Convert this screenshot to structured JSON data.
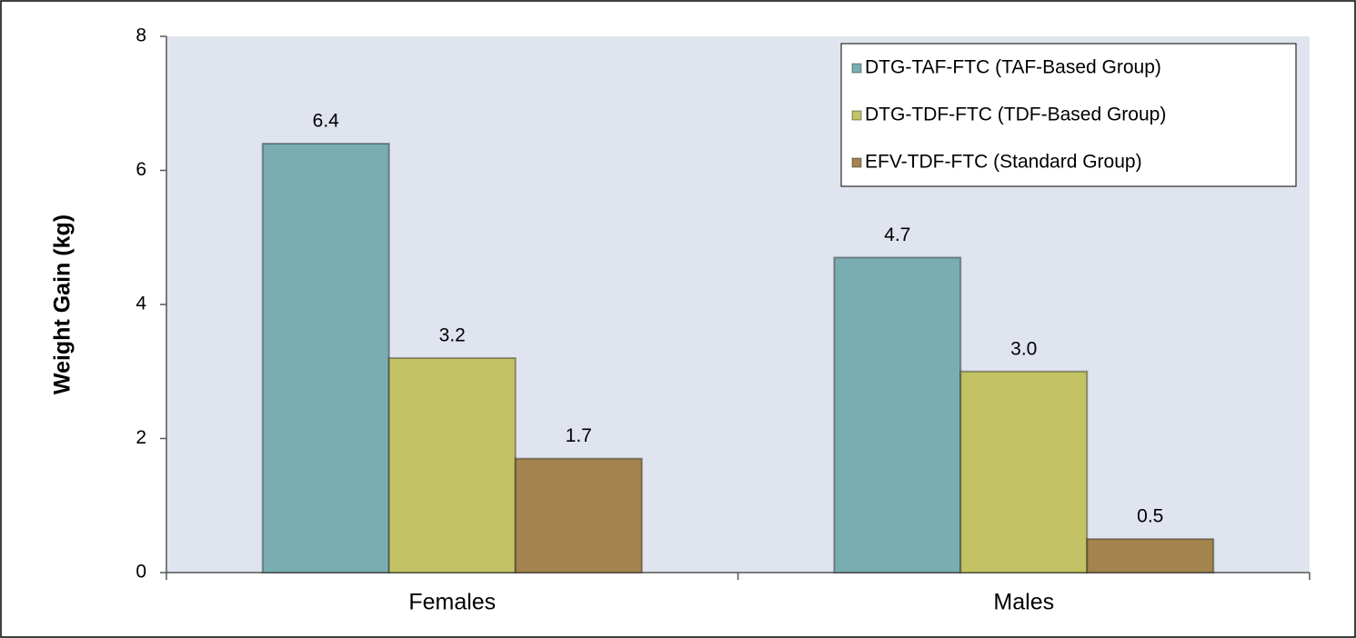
{
  "chart_data": {
    "type": "bar",
    "y_label": "Weight Gain (kg)",
    "categories": [
      "Females",
      "Males"
    ],
    "series": [
      {
        "name": "DTG-TAF-FTC (TAF-Based Group)",
        "color": "#7aadb1",
        "values": [
          6.4,
          4.7
        ]
      },
      {
        "name": "DTG-TDF-FTC (TDF-Based Group)",
        "color": "#c3c264",
        "values": [
          3.2,
          3
        ],
        "value_labels": [
          "3.2",
          "3.0"
        ]
      },
      {
        "name": "EFV-TDF-FTC (Standard Group)",
        "color": "#a3844f",
        "values": [
          1.7,
          0.5
        ]
      }
    ],
    "ylim": [
      0,
      8
    ],
    "yticks": [
      0,
      2,
      4,
      6,
      8
    ],
    "legend": "upper right"
  }
}
